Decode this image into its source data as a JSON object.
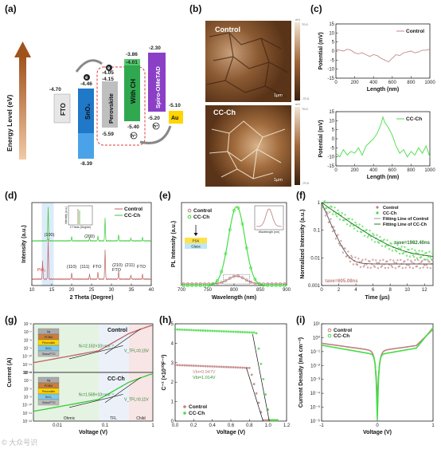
{
  "panels": {
    "a": "(a)",
    "b": "(b)",
    "c": "(c)",
    "d": "(d)",
    "e": "(e)",
    "f": "(f)",
    "g": "(g)",
    "h": "(h)",
    "i": "(i)"
  },
  "watermark": "© 大众号识",
  "energy": {
    "ylabel": "Energy Level (eV)",
    "levels": {
      "fto": "-4.70",
      "sno2_cb": "-4.46",
      "sno2_vb": "-8.39",
      "pvk_cb": "-4.05",
      "pvk_cb2": "-4.15",
      "pvk_vb": "-5.59",
      "cch_cb": "-3.86",
      "cch_cb2": "-4.01",
      "cch_vb": "-5.40",
      "spiro_lumo": "-2.30",
      "spiro_homo": "-5.20",
      "au": "-5.10"
    },
    "layers": {
      "fto": "FTO",
      "sno2": "SnO₂",
      "pvk": "Perovskite",
      "cch": "With CH",
      "spiro": "Spiro-OMeTAD",
      "au": "Au"
    },
    "charges": {
      "e": "e",
      "h": "h⁺"
    },
    "colors": {
      "arrow": "#a0521d",
      "fto": "#e6e6e6",
      "sno2": "#1f78c8",
      "pvk": "#bfbfbf",
      "cch": "#2fa84f",
      "spiro": "#8a3fc6",
      "au": "#ffd400",
      "dash": "#e03a3a"
    }
  },
  "afm": {
    "control_label": "Control",
    "cch_label": "CC-Ch",
    "scale": "1μm",
    "unit": "mV",
    "max": "70.0",
    "min": "-70.0",
    "ticks": [
      "50.0",
      "0.0",
      "-50.0"
    ]
  },
  "chart_data": [
    {
      "id": "c-top",
      "type": "line",
      "title": "",
      "xlabel": "Length (nm)",
      "ylabel": "Potential (mV)",
      "xlim": [
        0,
        1000
      ],
      "ylim": [
        -15,
        15
      ],
      "xticks": [
        "0",
        "200",
        "400",
        "600",
        "800",
        "1000"
      ],
      "yticks": [
        "15",
        "10",
        "5",
        "0",
        "-5",
        "-10",
        "-15"
      ],
      "series": [
        {
          "name": "Control",
          "color": "#c28a8a",
          "x": [
            0,
            40,
            80,
            120,
            160,
            200,
            240,
            280,
            320,
            360,
            400,
            440,
            480,
            520,
            560,
            600,
            640,
            680,
            720,
            760,
            800,
            840,
            880,
            920,
            960,
            1000
          ],
          "y": [
            1,
            0.5,
            0,
            1,
            0.5,
            -1,
            -1.5,
            -1,
            -2,
            -3,
            -2,
            -2.5,
            -4,
            -5,
            -6,
            -4,
            -2,
            -2.5,
            -1,
            -0.5,
            0,
            -1,
            -0.5,
            0.5,
            0.5,
            1
          ]
        }
      ]
    },
    {
      "id": "c-bottom",
      "type": "line",
      "title": "",
      "xlabel": "Length (nm)",
      "ylabel": "Potential (mV)",
      "xlim": [
        0,
        1000
      ],
      "ylim": [
        -15,
        15
      ],
      "xticks": [
        "0",
        "200",
        "400",
        "600",
        "800",
        "1000"
      ],
      "yticks": [
        "15",
        "10",
        "5",
        "0",
        "-5",
        "-10",
        "-15"
      ],
      "series": [
        {
          "name": "CC-Ch",
          "color": "#44dd44",
          "x": [
            0,
            40,
            80,
            120,
            160,
            200,
            240,
            280,
            320,
            360,
            400,
            440,
            480,
            500,
            520,
            560,
            600,
            640,
            680,
            720,
            760,
            800,
            840,
            880,
            920,
            960,
            1000
          ],
          "y": [
            -8,
            -10,
            -6,
            -9,
            -7,
            -8,
            -5,
            -9,
            -4,
            -2,
            0,
            3,
            8,
            12,
            9,
            6,
            2,
            -4,
            -8,
            -6,
            -10,
            -7,
            -9,
            -5,
            -8,
            -4,
            -10
          ]
        }
      ]
    },
    {
      "id": "d",
      "type": "line",
      "title": "",
      "xlabel": "2 Theta (Degree)",
      "ylabel": "Intensity (a.u.)",
      "xlim": [
        10,
        40
      ],
      "xticks": [
        "10",
        "15",
        "20",
        "25",
        "30",
        "35",
        "40"
      ],
      "legend": [
        "Control",
        "CC-Ch"
      ],
      "annotations": [
        "(100)",
        "(200)",
        "PbI₂",
        "(110)",
        "(111)",
        "FTO",
        "(210)",
        "FTO",
        "(211)",
        "FTO"
      ],
      "inset_xlabel": "2 Theta (Degree)",
      "inset_ylabel": "Intensity (a.u.)",
      "series": [
        {
          "name": "Control",
          "color": "#c06060",
          "peaks": [
            [
              12.7,
              0.45
            ],
            [
              14.1,
              1.0
            ],
            [
              20.0,
              0.15
            ],
            [
              24.5,
              0.12
            ],
            [
              26.6,
              0.18
            ],
            [
              28.4,
              0.75
            ],
            [
              31.8,
              0.2
            ],
            [
              34.9,
              0.1
            ],
            [
              37.8,
              0.12
            ]
          ]
        },
        {
          "name": "CC-Ch",
          "color": "#33cc33",
          "peaks": [
            [
              14.1,
              1.0
            ],
            [
              20.0,
              0.12
            ],
            [
              24.5,
              0.1
            ],
            [
              26.6,
              0.15
            ],
            [
              28.4,
              0.7
            ],
            [
              31.8,
              0.18
            ],
            [
              34.9,
              0.08
            ],
            [
              37.8,
              0.1
            ]
          ]
        }
      ]
    },
    {
      "id": "e",
      "type": "line",
      "title": "",
      "xlabel": "Wavelength (nm)",
      "ylabel": "PL Intensity (a.u.)",
      "xlim": [
        700,
        900
      ],
      "ylim": [
        0,
        1.05
      ],
      "xticks": [
        "700",
        "750",
        "800",
        "850",
        "900"
      ],
      "legend": [
        "Control",
        "CC-Ch"
      ],
      "stack_labels": [
        "PSK",
        "Glass"
      ],
      "inset_xlabel": "Wavelength (nm)",
      "series": [
        {
          "name": "Control",
          "color": "#b88080",
          "center": 805,
          "width": 22,
          "amp": 0.1
        },
        {
          "name": "CC-Ch",
          "color": "#33dd33",
          "center": 805,
          "width": 22,
          "amp": 1.0
        }
      ]
    },
    {
      "id": "f",
      "type": "scatter",
      "title": "",
      "xlabel": "Time (μs)",
      "ylabel": "Normalized Intensity (a.u.)",
      "xlim": [
        0,
        13
      ],
      "ylim": [
        0.001,
        1
      ],
      "yscale": "log",
      "xticks": [
        "0",
        "2",
        "4",
        "6",
        "8",
        "10",
        "12"
      ],
      "yticks": [
        "1",
        "0.1",
        "0.01",
        "0.001"
      ],
      "legend": [
        "Control",
        "CC-Ch",
        "Fitting Line of Control",
        "Fitting Line of CC-Ch"
      ],
      "notes": [
        "τave=1982.40ns",
        "τave=605.08ns"
      ],
      "series": [
        {
          "name": "Control",
          "color": "#c08080",
          "tau_ns": 605.08
        },
        {
          "name": "CC-Ch",
          "color": "#44dd44",
          "tau_ns": 1982.4
        }
      ]
    },
    {
      "id": "g",
      "type": "line",
      "title": "",
      "xlabel": "Voltage (V)",
      "ylabel": "Current (A)",
      "xscale": "log",
      "yscale": "log",
      "xticks": [
        "0.01",
        "0.1",
        "1"
      ],
      "yticks_top": [
        "10⁻⁶",
        "10⁻⁷",
        "10⁻⁸",
        "10⁻⁹",
        "10⁻¹⁰",
        "10⁻¹¹",
        "10⁻¹²"
      ],
      "yticks_bottom": [
        "10⁻⁶",
        "10⁻⁷",
        "10⁻⁸",
        "10⁻⁹",
        "10⁻¹⁰",
        "10⁻¹¹",
        "10⁻¹²"
      ],
      "top": {
        "name": "Control",
        "nt": "Nₜ=2.162×10¹⁵cm⁻³",
        "vtfl": "V_TFL=0.15V"
      },
      "bottom": {
        "name": "CC-Ch",
        "nt": "Nₜ=1.569×10¹⁵cm⁻³",
        "vtfl": "V_TFL=0.11V"
      },
      "regions": [
        "Ohmic",
        "TFL",
        "Child"
      ],
      "device": [
        "Ag",
        "PCBM",
        "Perovskite",
        "SnO₂",
        "Glass/FTO"
      ]
    },
    {
      "id": "h",
      "type": "scatter",
      "title": "",
      "xlabel": "Voltage (V)",
      "ylabel": "C⁻² (×10¹⁰F⁻²)",
      "xlim": [
        0,
        1.2
      ],
      "ylim": [
        0,
        5.2
      ],
      "xticks": [
        "0.0",
        "0.2",
        "0.4",
        "0.6",
        "0.8",
        "1.0",
        "1.2"
      ],
      "yticks": [
        "0",
        "1",
        "2",
        "3",
        "4",
        "5"
      ],
      "legend": [
        "Control",
        "CC-Ch"
      ],
      "notes": [
        "Vbi=0.947V",
        "Vbi=1.014V"
      ],
      "series": [
        {
          "name": "Control",
          "color": "#c08080",
          "plateau": 3.0,
          "vbi": 0.947
        },
        {
          "name": "CC-Ch",
          "color": "#44dd44",
          "plateau": 4.9,
          "vbi": 1.014
        }
      ]
    },
    {
      "id": "i",
      "type": "line",
      "title": "",
      "xlabel": "Voltage (V)",
      "ylabel": "Current Density (mA cm⁻²)",
      "xlim": [
        -1,
        1
      ],
      "yscale": "log",
      "xticks": [
        "-1",
        "0",
        "1"
      ],
      "yticks": [
        "10¹",
        "10⁰",
        "10⁻¹",
        "10⁻²",
        "10⁻³",
        "10⁻⁴",
        "10⁻⁵",
        "10⁻⁶"
      ],
      "legend": [
        "Control",
        "CC-Ch"
      ],
      "series": [
        {
          "name": "Control",
          "color": "#c08080"
        },
        {
          "name": "CC-Ch",
          "color": "#44dd44"
        }
      ]
    }
  ]
}
